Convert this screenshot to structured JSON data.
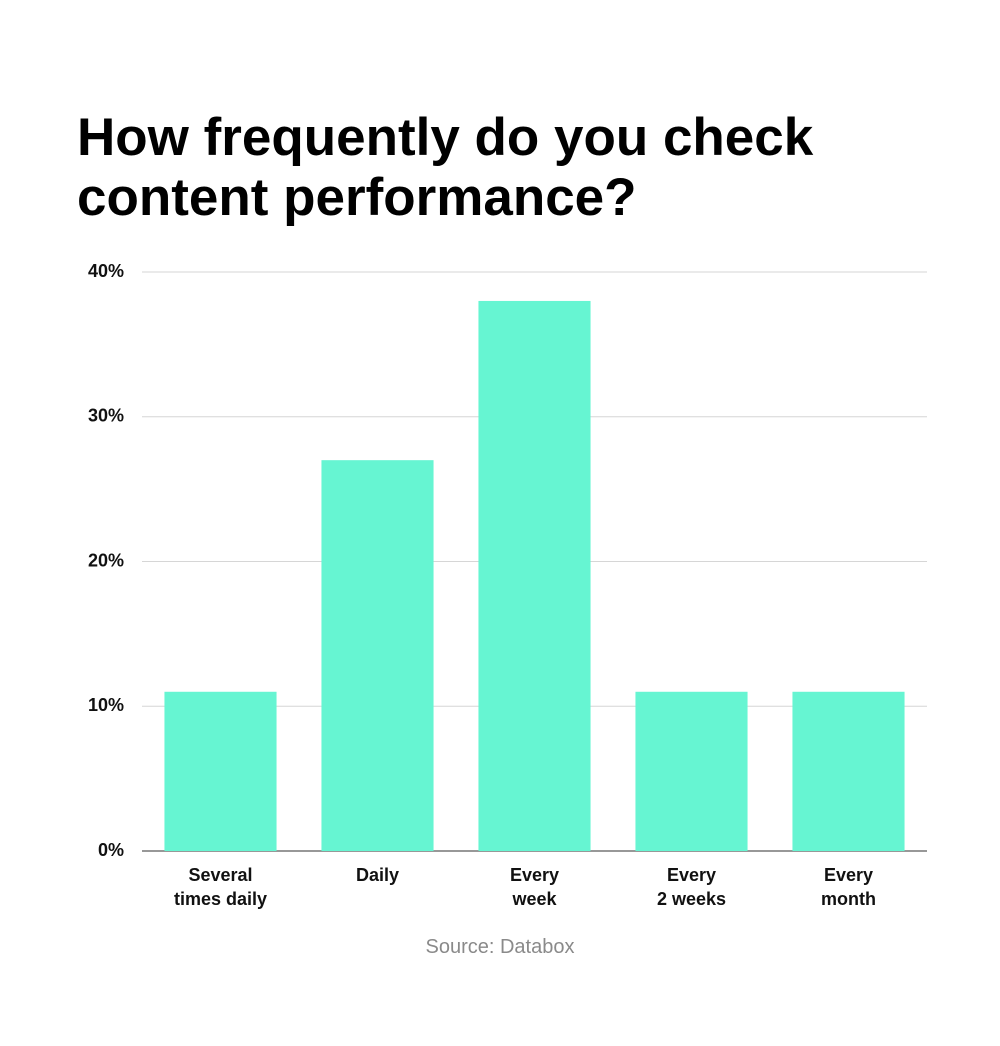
{
  "chart_data": {
    "type": "bar",
    "title": "How frequently do you check content performance?",
    "categories": [
      "Several\ntimes daily",
      "Daily",
      "Every\nweek",
      "Every\n2 weeks",
      "Every\nmonth"
    ],
    "values": [
      11,
      27,
      38,
      11,
      11
    ],
    "color": "#66f5d2",
    "ylim": [
      0,
      40
    ],
    "yticks": [
      {
        "value": 0,
        "label": "0%"
      },
      {
        "value": 10,
        "label": "10%"
      },
      {
        "value": 20,
        "label": "20%"
      },
      {
        "value": 30,
        "label": "30%"
      },
      {
        "value": 40,
        "label": "40%"
      }
    ],
    "grid": true,
    "source": "Source: Databox"
  }
}
